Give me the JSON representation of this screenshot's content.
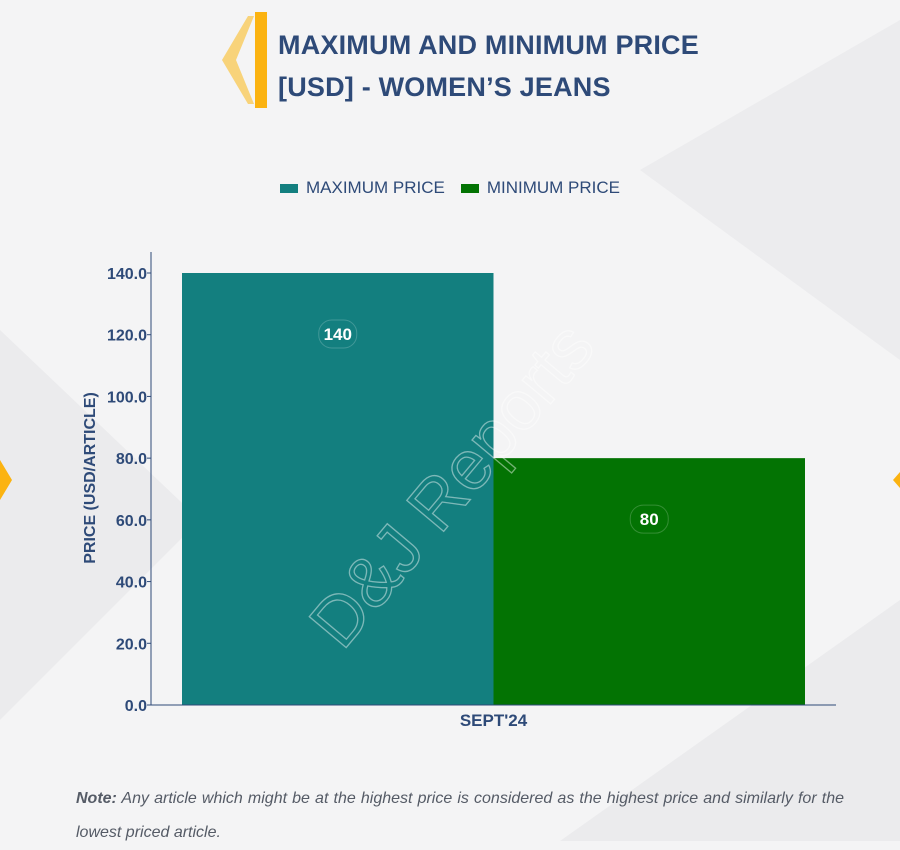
{
  "header": {
    "title_line1": "MAXIMUM AND MINIMUM PRICE",
    "title_line2": "[USD] - WOMEN’S JEANS"
  },
  "colors": {
    "title": "#2e4a78",
    "accent_yellow": "#fbb311",
    "accent_yellow_light": "#f8d37a"
  },
  "watermark": "D&J Reports",
  "chart_data": {
    "type": "bar",
    "title": "MAXIMUM AND MINIMUM PRICE [USD] - WOMEN’S JEANS",
    "categories": [
      "SEPT'24"
    ],
    "series": [
      {
        "name": "MAXIMUM PRICE",
        "values": [
          140
        ],
        "color": "#137f7f",
        "label": "140"
      },
      {
        "name": "MINIMUM PRICE",
        "values": [
          80
        ],
        "color": "#037303",
        "label": "80"
      }
    ],
    "xlabel": "",
    "ylabel": "PRICE (USD/ARTICLE)",
    "ylim": [
      0,
      140
    ],
    "yticks": [
      "0.0",
      "20.0",
      "40.0",
      "60.0",
      "80.0",
      "100.0",
      "120.0",
      "140.0"
    ],
    "ytick_values": [
      0,
      20,
      40,
      60,
      80,
      100,
      120,
      140
    ],
    "legend": "top-center",
    "grid": false
  },
  "note": {
    "label": "Note:",
    "text": "Any article which might be at the highest price is considered as the highest price and similarly for the lowest priced article."
  }
}
